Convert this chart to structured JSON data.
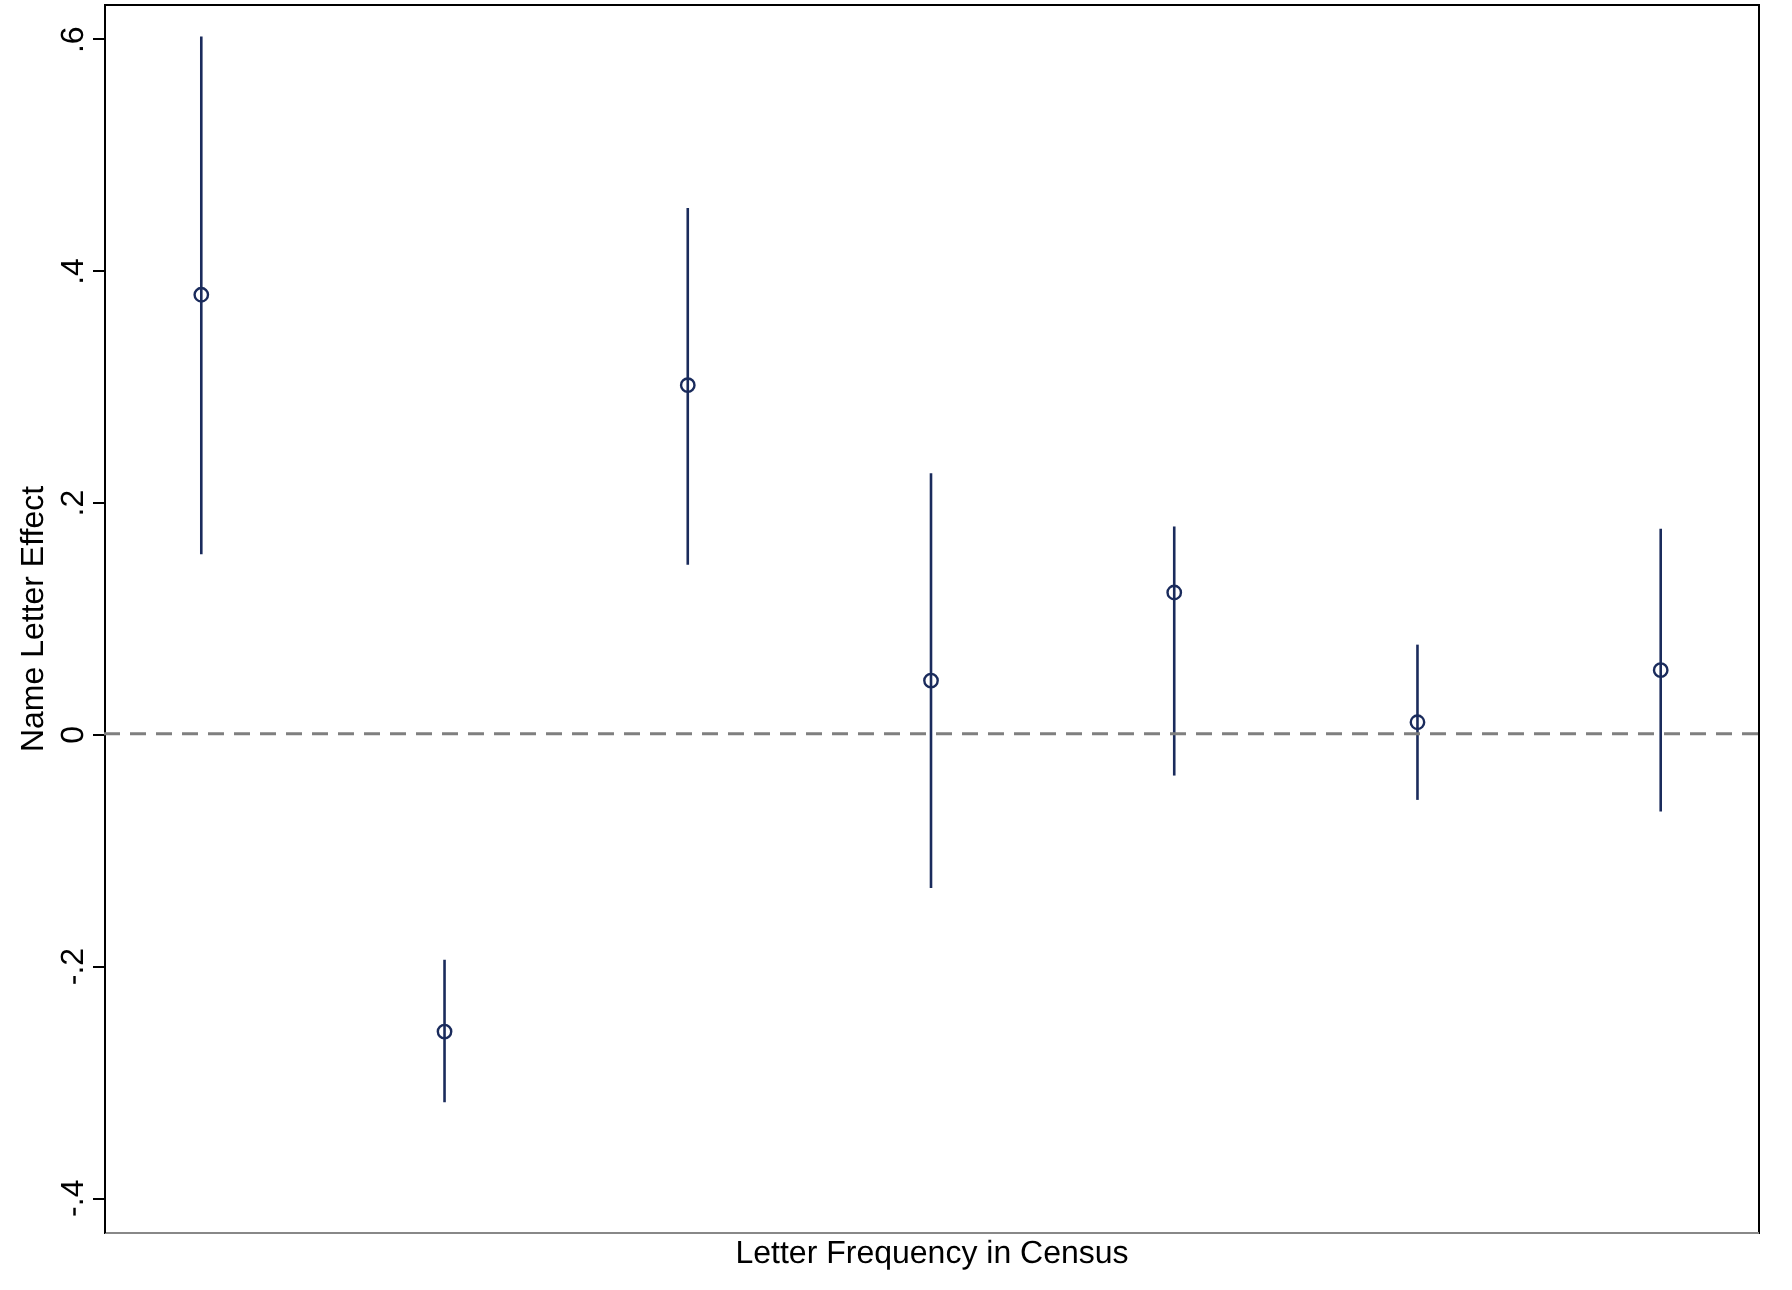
{
  "chart_data": {
    "type": "scatter",
    "xlabel": "Letter Frequency in Census",
    "ylabel": "Name Letter Effect",
    "categories": [
      null,
      null,
      null,
      null,
      null,
      null,
      null
    ],
    "series": [
      {
        "color": "#1a2b5c",
        "values": [
          0.379,
          -0.257,
          0.301,
          0.046,
          0.122,
          0.01,
          0.055
        ],
        "errors": [
          [
            0.155,
            0.602
          ],
          [
            -0.318,
            -0.195
          ],
          [
            0.146,
            0.454
          ],
          [
            -0.133,
            0.225
          ],
          [
            -0.036,
            0.179
          ],
          [
            -0.057,
            0.077
          ],
          [
            -0.067,
            0.177
          ]
        ]
      }
    ],
    "ylim": [
      -0.43,
      0.63
    ],
    "yticks": [
      {
        "value": -0.4,
        "label": "-.4"
      },
      {
        "value": -0.2,
        "label": "-.2"
      },
      0,
      {
        "value": 0.2,
        "label": ".2"
      },
      {
        "value": 0.4,
        "label": ".4"
      },
      {
        "value": 0.6,
        "label": ".6"
      }
    ],
    "ref_lines": [
      {
        "axis": "y",
        "value": 0,
        "color": "#7f7f7f",
        "line_style": "dashed"
      }
    ],
    "marker": "circle",
    "grid": false,
    "tick_labels": "y"
  }
}
